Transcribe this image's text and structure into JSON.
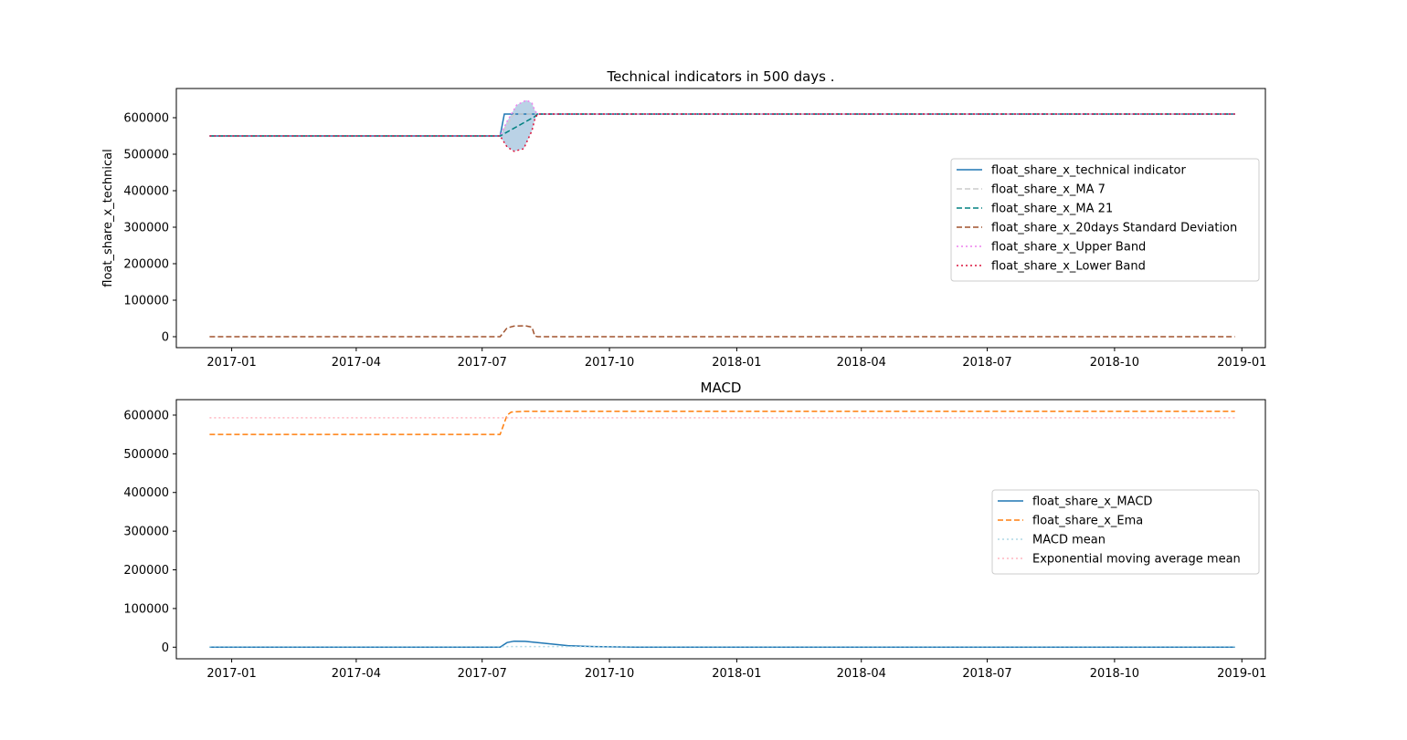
{
  "chart_data": [
    {
      "type": "line",
      "title": "Technical indicators in 500 days .",
      "xlabel": "",
      "ylabel": "float_share_x_technical",
      "x_ticks": [
        "2017-01",
        "2017-04",
        "2017-07",
        "2017-10",
        "2018-01",
        "2018-04",
        "2018-07",
        "2018-10",
        "2019-01"
      ],
      "y_ticks": [
        "0",
        "100000",
        "200000",
        "300000",
        "400000",
        "500000",
        "600000"
      ],
      "xlim": [
        "2016-11-22",
        "2019-01-18"
      ],
      "ylim": [
        -30000,
        680000
      ],
      "grid": false,
      "legend": "center-right",
      "series": [
        {
          "name": "float_share_x_technical indicator",
          "color": "#1f77b4",
          "style": "solid",
          "points": [
            [
              "2016-12-16",
              550000
            ],
            [
              "2017-07-14",
              550000
            ],
            [
              "2017-07-17",
              610000
            ],
            [
              "2018-12-27",
              610000
            ]
          ]
        },
        {
          "name": "float_share_x_MA 7",
          "color": "#cccccc",
          "style": "dashed",
          "points": [
            [
              "2016-12-16",
              550000
            ],
            [
              "2017-07-14",
              550000
            ],
            [
              "2017-07-24",
              610000
            ],
            [
              "2018-12-27",
              610000
            ]
          ]
        },
        {
          "name": "float_share_x_MA 21",
          "color": "#008080",
          "style": "dashed",
          "points": [
            [
              "2016-12-16",
              550000
            ],
            [
              "2017-07-14",
              550000
            ],
            [
              "2017-08-08",
              603000
            ],
            [
              "2017-08-10",
              610000
            ],
            [
              "2018-12-27",
              610000
            ]
          ]
        },
        {
          "name": "float_share_x_20days Standard Deviation",
          "color": "#a0522d",
          "style": "dashed",
          "points": [
            [
              "2016-12-16",
              0
            ],
            [
              "2017-07-14",
              0
            ],
            [
              "2017-07-19",
              24000
            ],
            [
              "2017-07-24",
              29000
            ],
            [
              "2017-08-01",
              30000
            ],
            [
              "2017-08-06",
              26000
            ],
            [
              "2017-08-08",
              2000
            ],
            [
              "2017-08-10",
              0
            ],
            [
              "2018-12-27",
              0
            ]
          ]
        },
        {
          "name": "float_share_x_Upper Band",
          "color": "#ee82ee",
          "style": "dotted",
          "points": [
            [
              "2016-12-16",
              550000
            ],
            [
              "2017-07-14",
              550000
            ],
            [
              "2017-07-19",
              590000
            ],
            [
              "2017-07-26",
              635000
            ],
            [
              "2017-08-02",
              648000
            ],
            [
              "2017-08-06",
              640000
            ],
            [
              "2017-08-08",
              620000
            ],
            [
              "2017-08-10",
              610000
            ],
            [
              "2018-12-27",
              610000
            ]
          ]
        },
        {
          "name": "float_share_x_Lower Band",
          "color": "#dc143c",
          "style": "dotted",
          "points": [
            [
              "2016-12-16",
              550000
            ],
            [
              "2017-07-14",
              550000
            ],
            [
              "2017-07-19",
              520000
            ],
            [
              "2017-07-24",
              508000
            ],
            [
              "2017-07-31",
              515000
            ],
            [
              "2017-08-06",
              565000
            ],
            [
              "2017-08-08",
              595000
            ],
            [
              "2017-08-10",
              610000
            ],
            [
              "2018-12-27",
              610000
            ]
          ]
        }
      ],
      "band_fill_color": "#b3cde3"
    },
    {
      "type": "line",
      "title": "MACD",
      "xlabel": "",
      "ylabel": "",
      "x_ticks": [
        "2017-01",
        "2017-04",
        "2017-07",
        "2017-10",
        "2018-01",
        "2018-04",
        "2018-07",
        "2018-10",
        "2019-01"
      ],
      "y_ticks": [
        "0",
        "100000",
        "200000",
        "300000",
        "400000",
        "500000",
        "600000"
      ],
      "xlim": [
        "2016-11-22",
        "2019-01-18"
      ],
      "ylim": [
        -30000,
        640000
      ],
      "grid": false,
      "legend": "center-right",
      "series": [
        {
          "name": "float_share_x_MACD",
          "color": "#1f77b4",
          "style": "solid",
          "points": [
            [
              "2016-12-16",
              0
            ],
            [
              "2017-07-14",
              0
            ],
            [
              "2017-07-19",
              12000
            ],
            [
              "2017-07-24",
              15500
            ],
            [
              "2017-08-01",
              15000
            ],
            [
              "2017-08-15",
              10000
            ],
            [
              "2017-09-01",
              4000
            ],
            [
              "2017-09-20",
              1500
            ],
            [
              "2017-10-20",
              300
            ],
            [
              "2018-12-27",
              0
            ]
          ]
        },
        {
          "name": "float_share_x_Ema",
          "color": "#ff7f0e",
          "style": "dashed",
          "points": [
            [
              "2016-12-16",
              550000
            ],
            [
              "2017-07-14",
              550000
            ],
            [
              "2017-07-19",
              600000
            ],
            [
              "2017-07-22",
              608000
            ],
            [
              "2017-08-01",
              610000
            ],
            [
              "2018-12-27",
              610000
            ]
          ]
        },
        {
          "name": "MACD mean",
          "color": "#add8e6",
          "style": "dotted",
          "points": [
            [
              "2016-12-16",
              1500
            ],
            [
              "2018-12-27",
              1500
            ]
          ]
        },
        {
          "name": "Exponential moving average mean",
          "color": "#ffb6c1",
          "style": "dotted",
          "points": [
            [
              "2016-12-16",
              593000
            ],
            [
              "2018-12-27",
              593000
            ]
          ]
        }
      ]
    }
  ]
}
